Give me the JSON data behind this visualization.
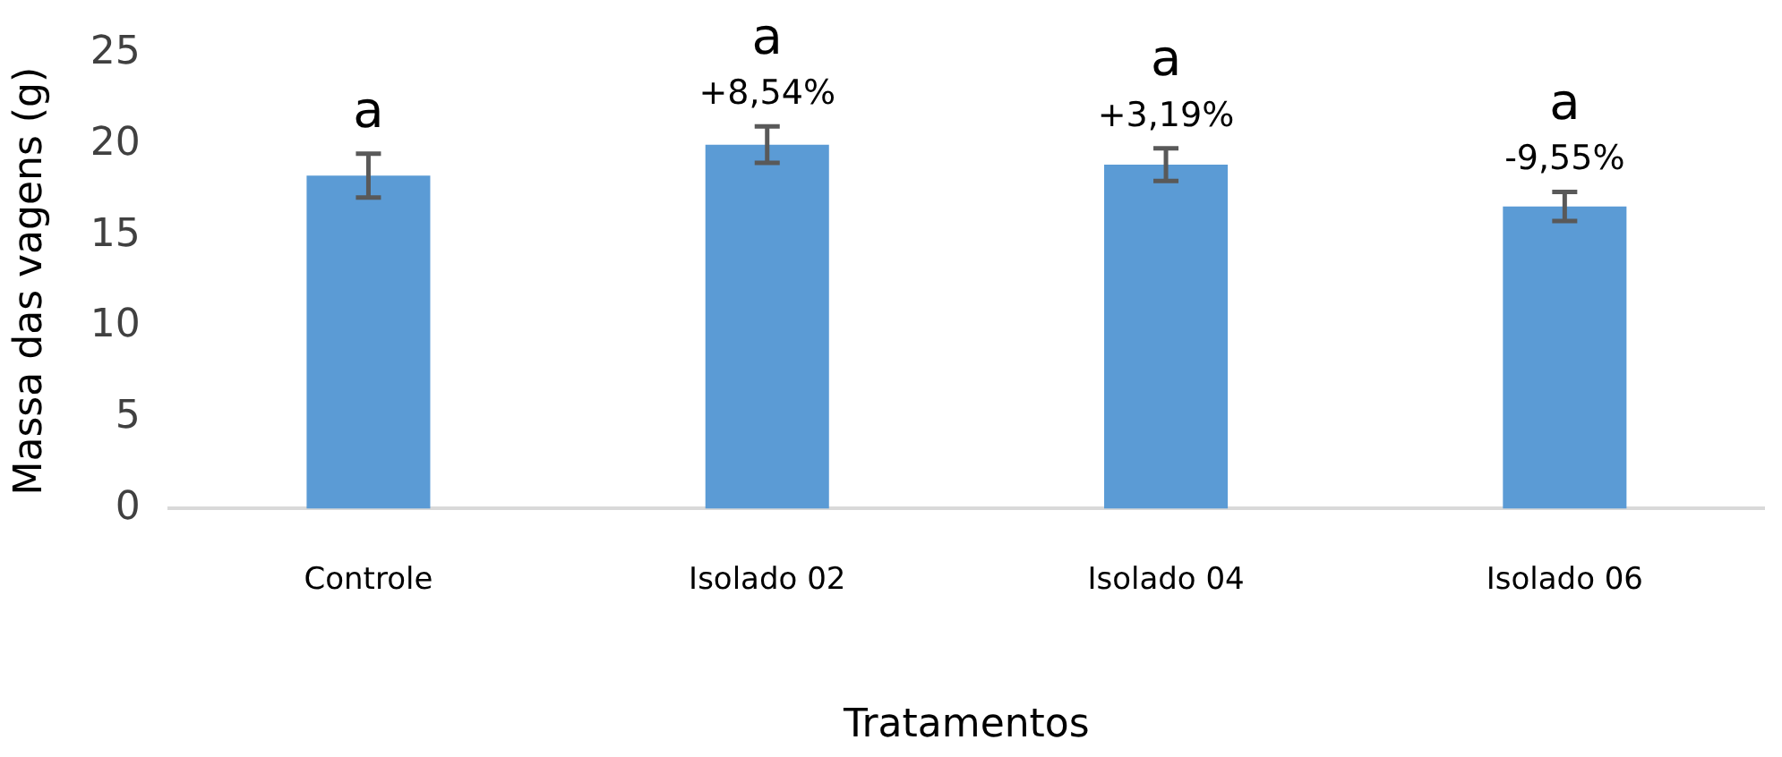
{
  "chart_data": {
    "type": "bar",
    "xlabel": "Tratamentos",
    "ylabel": "Massa das vagens (g)",
    "categories": [
      "Controle",
      "Isolado 02",
      "Isolado 04",
      "Isolado 06"
    ],
    "values": [
      18.3,
      20.0,
      18.9,
      16.6
    ],
    "errors": [
      1.2,
      1.0,
      0.9,
      0.8
    ],
    "color": "#5b9bd5",
    "ylim": [
      0,
      25
    ],
    "yticks": [
      0,
      5,
      10,
      15,
      20,
      25
    ],
    "grid": false,
    "legend": false,
    "annotations": [
      {
        "text": "a",
        "x": "Controle",
        "y": 18.3
      },
      {
        "text": "+8,54%",
        "x": "Isolado 02",
        "y": 20.0
      },
      {
        "text": "a",
        "x": "Isolado 02",
        "y": 20.0
      },
      {
        "text": "+3,19%",
        "x": "Isolado 04",
        "y": 18.9
      },
      {
        "text": "a",
        "x": "Isolado 04",
        "y": 18.9
      },
      {
        "text": "-9,55%",
        "x": "Isolado 06",
        "y": 16.6
      },
      {
        "text": "a",
        "x": "Isolado 06",
        "y": 16.6
      }
    ]
  }
}
